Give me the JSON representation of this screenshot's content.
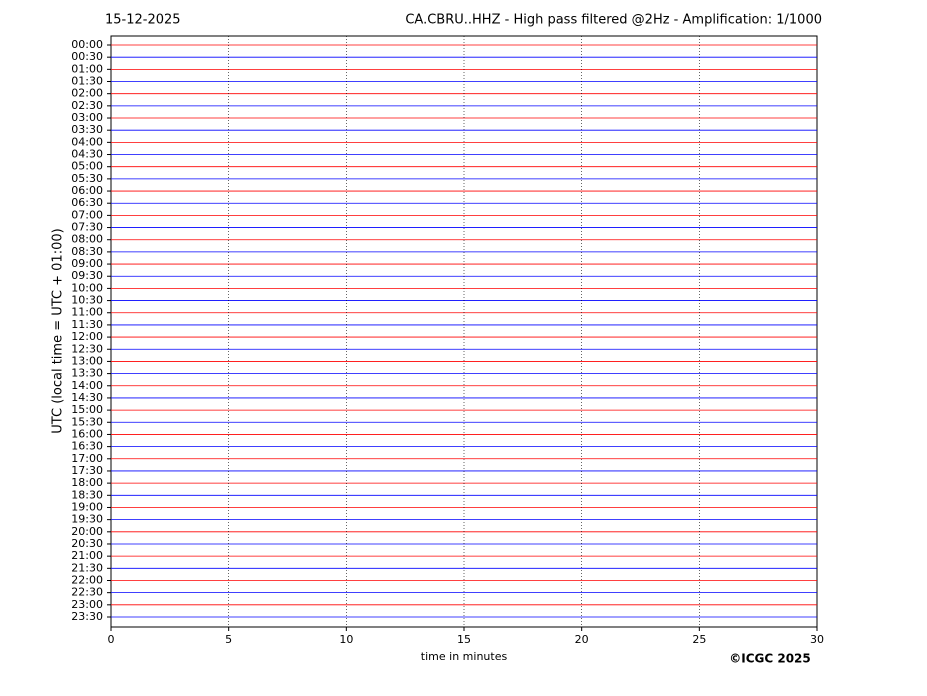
{
  "chart_data": {
    "type": "helicorder",
    "title": "15-12-2025",
    "subtitle": "CA.CBRU..HHZ - High pass filtered @2Hz - Amplification: 1/1000",
    "y_label": "UTC (local time = UTC + 01:00)",
    "x_label": "time in minutes",
    "annotation": "©ICGC 2025",
    "categories": [
      "00:00",
      "00:30",
      "01:00",
      "01:30",
      "02:00",
      "02:30",
      "03:00",
      "03:30",
      "04:00",
      "04:30",
      "05:00",
      "05:30",
      "06:00",
      "06:30",
      "07:00",
      "07:30",
      "08:00",
      "08:30",
      "09:00",
      "09:30",
      "10:00",
      "10:30",
      "11:00",
      "11:30",
      "12:00",
      "12:30",
      "13:00",
      "13:30",
      "14:00",
      "14:30",
      "15:00",
      "15:30",
      "16:00",
      "16:30",
      "17:00",
      "17:30",
      "18:00",
      "18:30",
      "19:00",
      "19:30",
      "20:00",
      "20:30",
      "21:00",
      "21:30",
      "22:00",
      "22:30",
      "23:00",
      "23:30"
    ],
    "colors": [
      "#ff0000",
      "#0000ff"
    ],
    "xlim": [
      0,
      30
    ],
    "xticks": [
      0,
      5,
      10,
      15,
      20,
      25,
      30
    ],
    "grid": true
  }
}
